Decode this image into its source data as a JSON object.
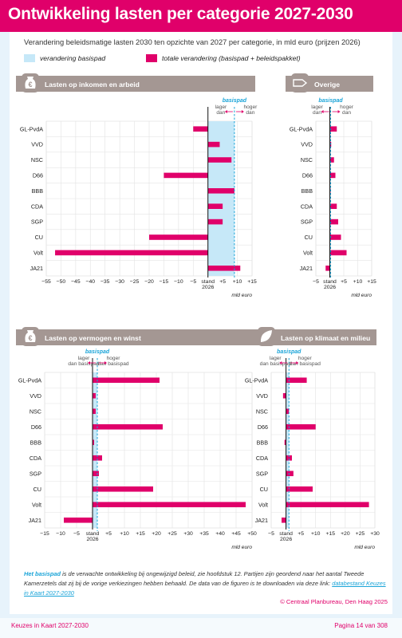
{
  "title": "Ontwikkeling lasten per categorie 2027-2030",
  "subtitle": "Verandering beleidsmatige lasten 2030 ten opzichte van 2027 per categorie, in mld euro (prijzen 2026)",
  "legend": {
    "basispad": "verandering basispad",
    "totaal": "totale verandering (basispad + beleidspakket)"
  },
  "colors": {
    "accent": "#e0006a",
    "basispad": "#c6e8f8",
    "basispad_line": "#1aa4d8",
    "header": "#a49793"
  },
  "annotations": {
    "basispad": "basispad",
    "lower": [
      "lager",
      "dan"
    ],
    "higher": [
      "hoger",
      "dan"
    ],
    "lower_full": [
      "lager",
      "dan basispad"
    ],
    "higher_full": [
      "hoger",
      "dan basispad"
    ],
    "stand": [
      "stand",
      "2026"
    ],
    "unit": "mld euro"
  },
  "chart_data": [
    {
      "type": "bar",
      "title": "Lasten op inkomen en arbeid",
      "icon": "euro-bag-icon",
      "categories": [
        "GL-PvdA",
        "VVD",
        "NSC",
        "D66",
        "BBB",
        "CDA",
        "SGP",
        "CU",
        "Volt",
        "JA21"
      ],
      "xlim": [
        -55,
        15
      ],
      "ticks": [
        -55,
        -50,
        -45,
        -40,
        -35,
        -30,
        -25,
        -20,
        -15,
        -10,
        -5,
        0,
        5,
        10,
        15
      ],
      "tick_labels": [
        "−55",
        "−50",
        "−45",
        "−40",
        "−35",
        "−30",
        "−25",
        "−20",
        "−15",
        "−10",
        "−5",
        "stand 2026",
        "+5",
        "+10",
        "+15"
      ],
      "basispad": 9,
      "series": [
        {
          "values": [
            -5,
            4,
            8,
            -15,
            9,
            5,
            5,
            -20,
            -52,
            11
          ]
        }
      ]
    },
    {
      "type": "bar",
      "title": "Overige",
      "icon": "tag-icon",
      "categories": [
        "GL-PvdA",
        "VVD",
        "NSC",
        "D66",
        "BBB",
        "CDA",
        "SGP",
        "CU",
        "Volt",
        "JA21"
      ],
      "xlim": [
        -5,
        15
      ],
      "ticks": [
        -5,
        0,
        5,
        10,
        15
      ],
      "tick_labels": [
        "−5",
        "stand 2026",
        "+5",
        "+10",
        "+15"
      ],
      "basispad": 0.3,
      "series": [
        {
          "values": [
            2.5,
            0.5,
            1.5,
            2,
            0,
            2.5,
            3,
            4,
            6,
            -1.5
          ]
        }
      ]
    },
    {
      "type": "bar",
      "title": "Lasten op vermogen en winst",
      "icon": "euro-bag-icon",
      "categories": [
        "GL-PvdA",
        "VVD",
        "NSC",
        "D66",
        "BBB",
        "CDA",
        "SGP",
        "CU",
        "Volt",
        "JA21"
      ],
      "xlim": [
        -15,
        50
      ],
      "ticks": [
        -15,
        -10,
        -5,
        0,
        5,
        10,
        15,
        20,
        25,
        30,
        35,
        40,
        45,
        50
      ],
      "tick_labels": [
        "−15",
        "−10",
        "−5",
        "stand 2026",
        "+5",
        "+10",
        "+15",
        "+20",
        "+25",
        "+30",
        "+35",
        "+40",
        "+45",
        "+50"
      ],
      "basispad": 1.5,
      "series": [
        {
          "values": [
            21,
            1,
            1,
            22,
            0.5,
            3,
            2,
            19,
            48,
            -9
          ]
        }
      ]
    },
    {
      "type": "bar",
      "title": "Lasten op klimaat en milieu",
      "icon": "leaf-icon",
      "categories": [
        "GL-PvdA",
        "VVD",
        "NSC",
        "D66",
        "BBB",
        "CDA",
        "SGP",
        "CU",
        "Volt",
        "JA21"
      ],
      "xlim": [
        -5,
        30
      ],
      "ticks": [
        -5,
        0,
        5,
        10,
        15,
        20,
        25,
        30
      ],
      "tick_labels": [
        "−5",
        "stand 2026",
        "+5",
        "+10",
        "+15",
        "+20",
        "+25",
        "+30"
      ],
      "basispad": 1,
      "series": [
        {
          "values": [
            7,
            -1,
            1,
            10,
            -0.5,
            2,
            2.5,
            9,
            28,
            -1.5
          ]
        }
      ]
    }
  ],
  "footnote": {
    "highlight": "Het basispad",
    "text": " is de verwachte ontwikkeling bij ongewijzigd beleid, zie hoofdstuk 12. Partijen zijn geordend naar het aantal Tweede Kamerzetels dat zij bij de vorige verkiezingen hebben behaald. De data van de figuren is te downloaden via deze link: ",
    "link": "databestand Keuzes in Kaart 2027-2030"
  },
  "copyright": "© Centraal Planbureau, Den Haag 2025",
  "page_footer": {
    "left": "Keuzes in Kaart 2027-2030",
    "right": "Pagina 14 van 308"
  }
}
